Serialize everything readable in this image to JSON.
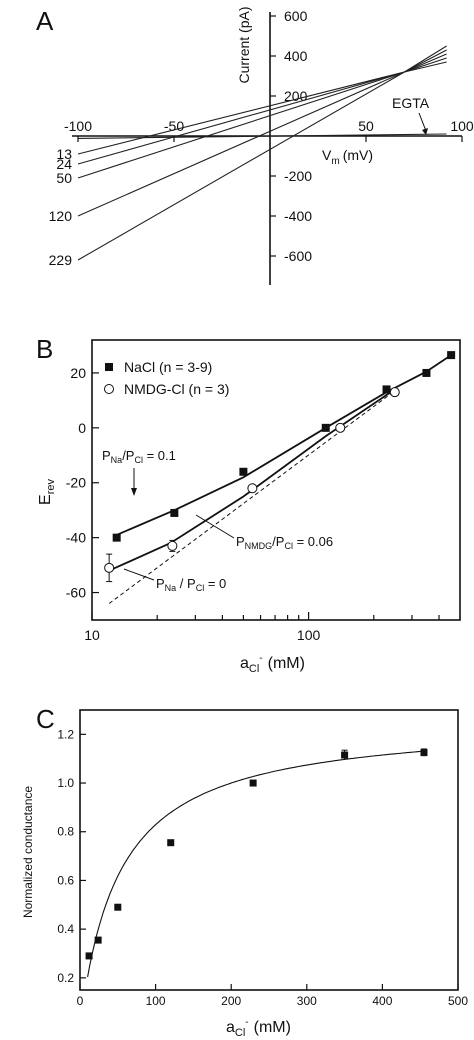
{
  "chart_data": [
    {
      "panel": "A",
      "type": "line",
      "xlabel": "V",
      "xlabel_sub": "m",
      "xlabel_unit": "(mV)",
      "ylabel": "Current (pA)",
      "xlim": [
        -100,
        100
      ],
      "ylim": [
        -700,
        600
      ],
      "xticks": [
        "-100",
        "-50",
        "50",
        "100"
      ],
      "yticks": [
        "600",
        "400",
        "200",
        "-200",
        "-400",
        "-600"
      ],
      "egta_label": "EGTA",
      "series": [
        {
          "name": "13",
          "x": [
            -100,
            70,
            92
          ],
          "y": [
            -90,
            320,
            370
          ]
        },
        {
          "name": "24",
          "x": [
            -100,
            70,
            92
          ],
          "y": [
            -140,
            320,
            390
          ]
        },
        {
          "name": "50",
          "x": [
            -100,
            70,
            92
          ],
          "y": [
            -210,
            320,
            410
          ]
        },
        {
          "name": "120",
          "x": [
            -100,
            70,
            92
          ],
          "y": [
            -400,
            320,
            430
          ]
        },
        {
          "name": "229",
          "x": [
            -100,
            70,
            92
          ],
          "y": [
            -620,
            320,
            450
          ]
        },
        {
          "name": "EGTA",
          "x": [
            -100,
            92
          ],
          "y": [
            -12,
            10
          ]
        }
      ]
    },
    {
      "panel": "B",
      "type": "scatter",
      "xscale": "log",
      "xlabel": "a",
      "xlabel_sub": "Cl",
      "xlabel_sup": "-",
      "xlabel_unit": "(mM)",
      "ylabel": "E",
      "ylabel_sub": "rev",
      "xlim": [
        10,
        500
      ],
      "ylim": [
        -70,
        32
      ],
      "xticks": [
        "10",
        "100"
      ],
      "yticks": [
        "20",
        "0",
        "-20",
        "-40",
        "-60"
      ],
      "series": [
        {
          "name": "NaCl (n = 3-9)",
          "x": [
            13,
            24,
            50,
            120,
            229,
            350,
            455
          ],
          "y": [
            -40,
            -31,
            -16,
            0,
            14,
            20,
            26.5
          ]
        },
        {
          "name": "NMDG-Cl (n = 3)",
          "x": [
            12,
            23.5,
            55,
            140,
            250
          ],
          "y": [
            -51,
            -43,
            -22,
            0,
            13
          ],
          "yerr": [
            5,
            2,
            1,
            1,
            1
          ]
        }
      ],
      "fits": [
        {
          "x": [
            13,
            24,
            50,
            120,
            229,
            350,
            455
          ],
          "y": [
            -39,
            -30,
            -18,
            0,
            13,
            20.5,
            26.5
          ]
        },
        {
          "x": [
            12,
            23,
            50,
            120,
            250
          ],
          "y": [
            -52,
            -42,
            -25,
            -3,
            14
          ]
        },
        {
          "x": [
            12,
            255
          ],
          "y": [
            -64,
            14
          ]
        }
      ],
      "annotations": {
        "pna_pcl_01": {
          "p1": "P",
          "s1": "Na",
          "mid": "/P",
          "s2": "Cl",
          "tail": " = 0.1"
        },
        "pnmdg": {
          "p1": "P",
          "s1": "NMDG",
          "mid": "/P",
          "s2": "Cl",
          "tail": " = 0.06"
        },
        "pna_pcl_0": {
          "p1": "P",
          "s1": "Na",
          "mid": " / P",
          "s2": "Cl",
          "tail": " = 0"
        }
      }
    },
    {
      "panel": "C",
      "type": "scatter",
      "xlabel": "a",
      "xlabel_sub": "Cl",
      "xlabel_sup": "-",
      "xlabel_unit": "(mM)",
      "ylabel": "Normalized conductance",
      "xlim": [
        0,
        500
      ],
      "ylim": [
        0.15,
        1.3
      ],
      "xticks": [
        "0",
        "100",
        "200",
        "300",
        "400",
        "500"
      ],
      "yticks": [
        "0.2",
        "0.4",
        "0.6",
        "0.8",
        "1.0",
        "1.2"
      ],
      "x": [
        12,
        24,
        50,
        120,
        229,
        350,
        455
      ],
      "y": [
        0.29,
        0.355,
        0.49,
        0.755,
        1.0,
        1.115,
        1.125
      ],
      "yerr": [
        0,
        0,
        0,
        0,
        0,
        0.02,
        0.015
      ],
      "fit": {
        "type": "michaelis-menten",
        "gmax": 1.26,
        "km": 52
      }
    }
  ]
}
